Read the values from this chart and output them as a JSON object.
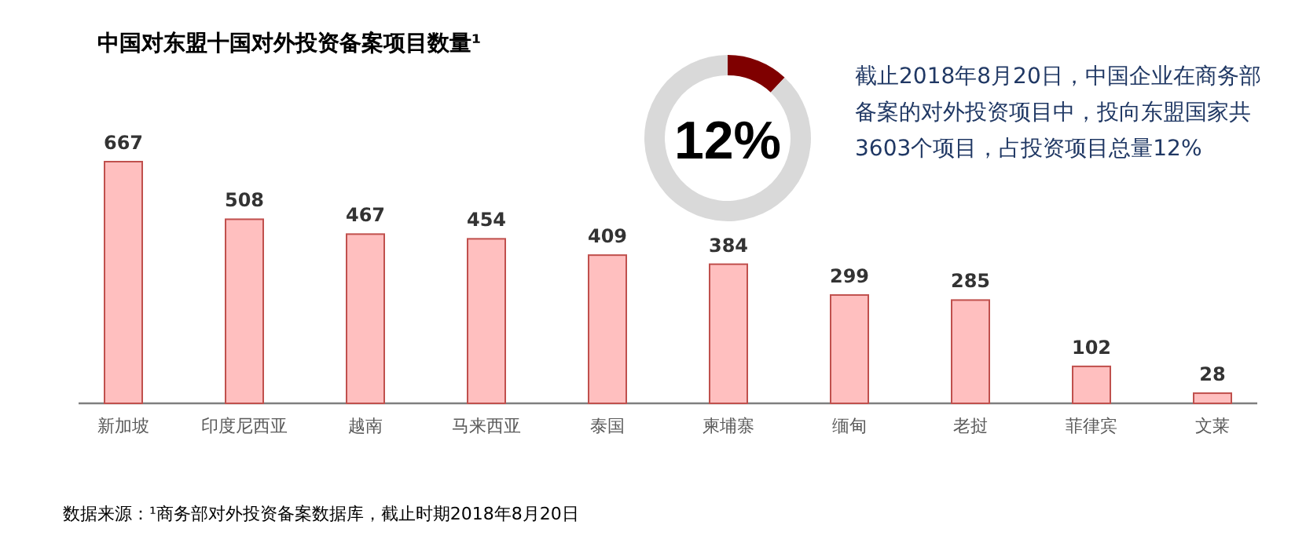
{
  "chart_data": [
    {
      "type": "bar",
      "title": "中国对东盟十国对外投资备案项目数量¹",
      "categories": [
        "新加坡",
        "印度尼西亚",
        "越南",
        "马来西亚",
        "泰国",
        "柬埔寨",
        "缅甸",
        "老挝",
        "菲律宾",
        "文莱"
      ],
      "values": [
        667,
        508,
        467,
        454,
        409,
        384,
        299,
        285,
        102,
        28
      ],
      "color": "#ffbfbf",
      "data_labels": true,
      "annotations": [
        "数据来源：¹商务部对外投资备案数据库，截止时期2018年8月20日"
      ]
    },
    {
      "type": "donut",
      "categories": [
        null,
        null
      ],
      "values": [
        12,
        88
      ],
      "colors": [
        "#7f0000",
        "#d9d9d9"
      ],
      "annotations": [
        "12%",
        "截止2018年8月20日，中国企业在商务部备案的对外投资项目中，投向东盟国家共3603个项目，占投资项目总量12%"
      ]
    }
  ]
}
